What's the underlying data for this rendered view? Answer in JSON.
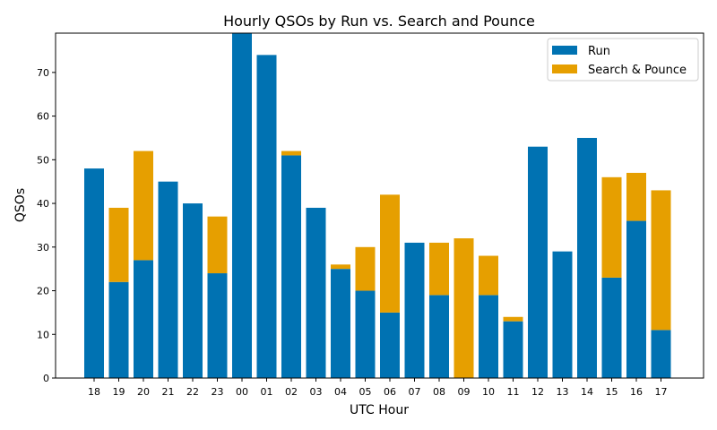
{
  "chart_data": {
    "type": "bar",
    "stacked": true,
    "title": "Hourly QSOs by Run vs. Search and Pounce",
    "xlabel": "UTC Hour",
    "ylabel": "QSOs",
    "ylim": [
      0,
      79
    ],
    "yticks": [
      0,
      10,
      20,
      30,
      40,
      50,
      60,
      70
    ],
    "grid": false,
    "legend_position": "top-right",
    "categories": [
      "18",
      "19",
      "20",
      "21",
      "22",
      "23",
      "00",
      "01",
      "02",
      "03",
      "04",
      "05",
      "06",
      "07",
      "08",
      "09",
      "10",
      "11",
      "12",
      "13",
      "14",
      "15",
      "16",
      "17"
    ],
    "series": [
      {
        "name": "Run",
        "color": "#0072b2",
        "values": [
          48,
          22,
          27,
          45,
          40,
          24,
          80,
          74,
          51,
          39,
          25,
          20,
          15,
          31,
          19,
          0,
          19,
          13,
          53,
          29,
          55,
          23,
          36,
          11
        ]
      },
      {
        "name": "Search & Pounce",
        "color": "#e69f00",
        "values": [
          0,
          17,
          25,
          0,
          0,
          13,
          0,
          0,
          1,
          0,
          1,
          10,
          27,
          0,
          12,
          32,
          9,
          1,
          0,
          0,
          0,
          23,
          11,
          32
        ]
      }
    ]
  }
}
